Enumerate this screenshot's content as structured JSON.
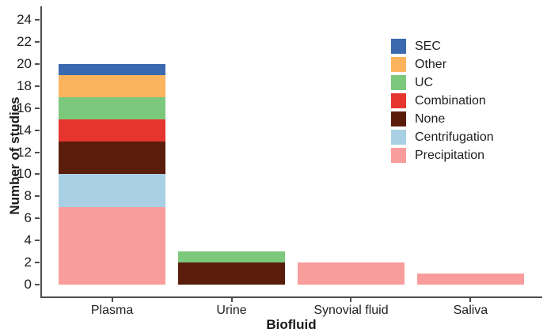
{
  "chart_data": {
    "type": "bar",
    "stacked": true,
    "title": "",
    "xlabel": "Biofluid",
    "ylabel": "Number of studies",
    "categories": [
      "Plasma",
      "Urine",
      "Synovial fluid",
      "Saliva"
    ],
    "series": [
      {
        "name": "Precipitation",
        "color": "#F99C9C",
        "values": [
          7,
          0,
          2,
          1
        ]
      },
      {
        "name": "Centrifugation",
        "color": "#A9CFE4",
        "values": [
          3,
          0,
          0,
          0
        ]
      },
      {
        "name": "None",
        "color": "#5A1D0C",
        "values": [
          3,
          2,
          0,
          0
        ]
      },
      {
        "name": "Combination",
        "color": "#E6352D",
        "values": [
          2,
          0,
          0,
          0
        ]
      },
      {
        "name": "UC",
        "color": "#7CC87D",
        "values": [
          2,
          1,
          0,
          0
        ]
      },
      {
        "name": "Other",
        "color": "#FBB35E",
        "values": [
          2,
          0,
          0,
          0
        ]
      },
      {
        "name": "SEC",
        "color": "#3B69B0",
        "values": [
          1,
          0,
          0,
          0
        ]
      }
    ],
    "category_totals": [
      20,
      3,
      2,
      1
    ],
    "legend": {
      "position": "top-right",
      "entries": [
        "SEC",
        "Other",
        "UC",
        "Combination",
        "None",
        "Centrifugation",
        "Precipitation"
      ]
    },
    "yticks": [
      0,
      2,
      4,
      6,
      8,
      10,
      12,
      14,
      16,
      18,
      20,
      22,
      24
    ],
    "ylim": [
      0,
      24
    ],
    "grid": false,
    "axis_color": "#4d4d4d",
    "text_color": "#1f1f1f",
    "background_color": "#ffffff"
  }
}
